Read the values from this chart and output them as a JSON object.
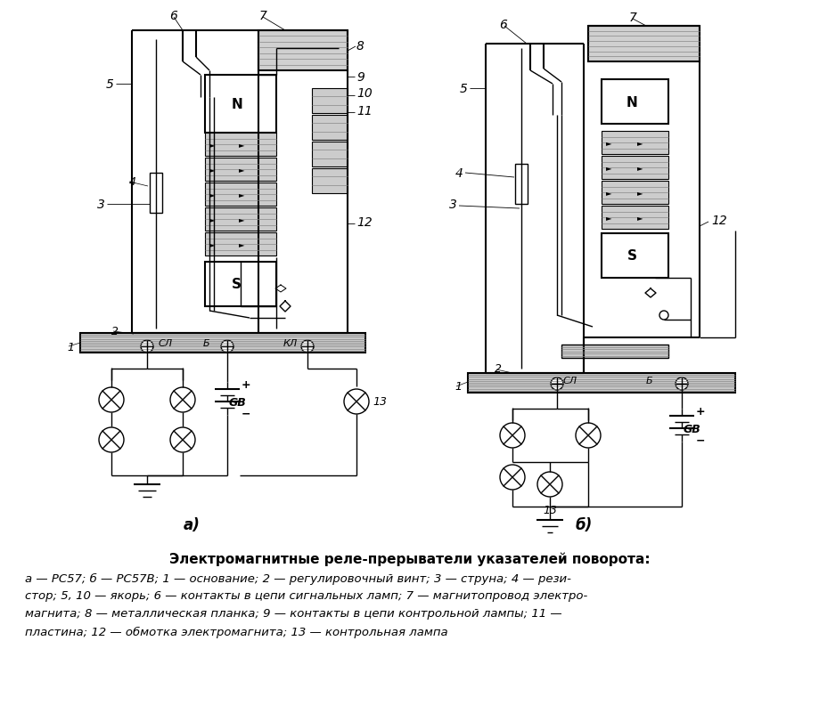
{
  "background_color": "#ffffff",
  "fig_width": 9.2,
  "fig_height": 8.12,
  "caption_title": "Электромагнитные реле-прерыватели указателей поворота:",
  "caption_line1": "а — РС57; б — РС57В; 1 — основание; 2 — регулировочный винт; 3 — струна; 4 — рези-",
  "caption_line2": "стор; 5, 10 — якорь; 6 — контакты в цепи сигнальных ламп; 7 — магнитопровод электро-",
  "caption_line3": "магнита; 8 — металлическая планка; 9 — контакты в цепи контрольной лампы; 11 —",
  "caption_line4": "пластина; 12 — обмотка электромагнита; 13 — контрольная лампа",
  "label_a": "а)",
  "label_b": "б)"
}
